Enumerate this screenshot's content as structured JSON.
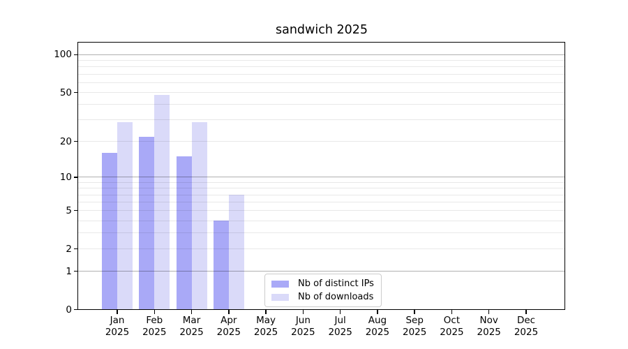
{
  "chart_data": {
    "type": "bar",
    "title": "sandwich 2025",
    "categories": [
      "Jan",
      "Feb",
      "Mar",
      "Apr",
      "May",
      "Jun",
      "Jul",
      "Aug",
      "Sep",
      "Oct",
      "Nov",
      "Dec"
    ],
    "year_label": "2025",
    "series": [
      {
        "name": "Nb of distinct IPs",
        "color": "#a9a9f7",
        "values": [
          16,
          22,
          15,
          4,
          0,
          0,
          0,
          0,
          0,
          0,
          0,
          0
        ]
      },
      {
        "name": "Nb of downloads",
        "color": "#dadaf9",
        "values": [
          29,
          48,
          29,
          7,
          0,
          0,
          0,
          0,
          0,
          0,
          0,
          0
        ]
      }
    ],
    "xlabel": "",
    "ylabel": "",
    "y_scale": "log1p",
    "ylim": [
      0,
      125
    ],
    "y_ticks": [
      0,
      1,
      2,
      5,
      10,
      20,
      50,
      100
    ],
    "major_gridlines": [
      1,
      10,
      100
    ],
    "minor_gridlines": [
      2,
      3,
      4,
      5,
      6,
      7,
      8,
      9,
      20,
      30,
      40,
      50,
      60,
      70,
      80,
      90
    ],
    "grid": true,
    "legend_position": "lower center",
    "style": {
      "spine_color": "#000000",
      "major_grid_rgba": "rgba(0,0,0,0.31)",
      "minor_grid_rgba": "rgba(0,0,0,0.09)",
      "text_color": "#000000",
      "background": "#ffffff"
    }
  }
}
